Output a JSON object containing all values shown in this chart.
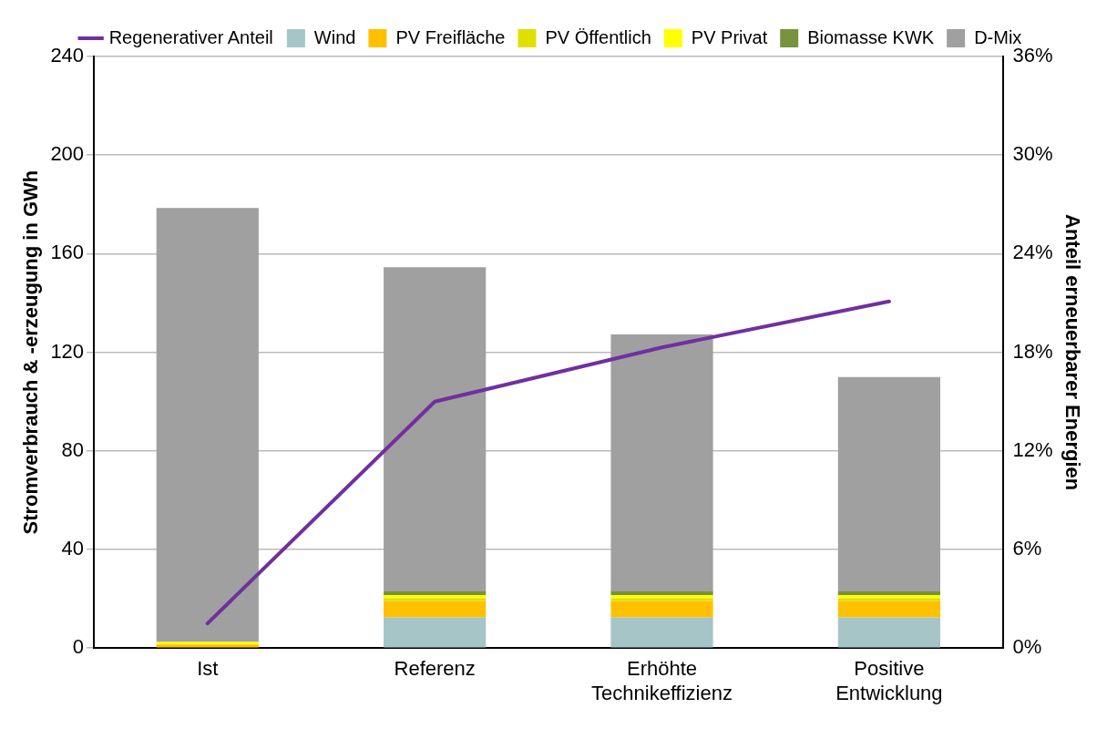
{
  "chart_data": {
    "type": "bar",
    "stacked": true,
    "categories": [
      "Ist",
      "Referenz",
      "Erhöhte\nTechnikeffizienz",
      "Positive\nEntwicklung"
    ],
    "ylabel": "Stromverbrauch & -erzeugung in GWh",
    "y2label": "Anteil erneuerbarer Energien",
    "ylim": [
      0,
      240
    ],
    "yticks": [
      0,
      40,
      80,
      120,
      160,
      200,
      240
    ],
    "y2lim": [
      0,
      36
    ],
    "y2ticks": [
      {
        "value": 0,
        "label": "0%"
      },
      {
        "value": 6,
        "label": "6%"
      },
      {
        "value": 12,
        "label": "12%"
      },
      {
        "value": 18,
        "label": "18%"
      },
      {
        "value": 24,
        "label": "24%"
      },
      {
        "value": 30,
        "label": "30%"
      },
      {
        "value": 36,
        "label": "36%"
      }
    ],
    "grid": "y",
    "legend": "top",
    "series": [
      {
        "name": "Wind",
        "color": "#a5c5c6",
        "values": [
          0,
          12.5,
          12.5,
          12.5
        ]
      },
      {
        "name": "PV Freifläche",
        "color": "#ffc000",
        "values": [
          1.5,
          6.5,
          6.5,
          6.5
        ]
      },
      {
        "name": "PV Öffentlich",
        "color": "#e0e000",
        "values": [
          0,
          1.2,
          1.2,
          1.2
        ]
      },
      {
        "name": "PV Privat",
        "color": "#ffff00",
        "values": [
          1,
          1.3,
          1.3,
          1.3
        ]
      },
      {
        "name": "Biomasse KWK",
        "color": "#77933c",
        "values": [
          0,
          1.5,
          1.5,
          1.5
        ]
      },
      {
        "name": "D-Mix",
        "color": "#a0a0a0",
        "values": [
          176,
          131.5,
          104.2,
          87
        ]
      },
      {
        "name": "Regenerativer Anteil",
        "type": "line",
        "axis": "y2",
        "color": "#7030a0",
        "marker": "none",
        "values": [
          1.5,
          15.0,
          18.3,
          21.1
        ]
      }
    ]
  }
}
